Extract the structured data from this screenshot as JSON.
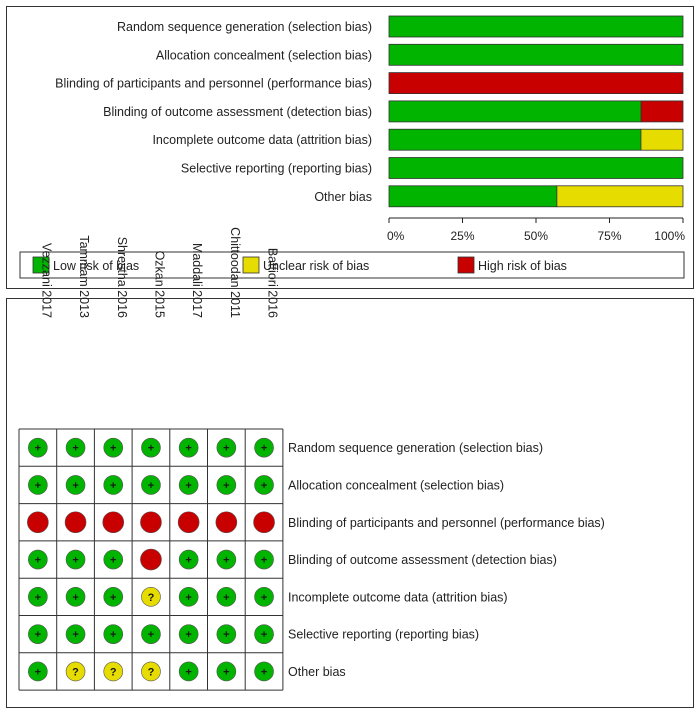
{
  "chart_data": [
    {
      "type": "bar",
      "subtype": "stacked-horizontal-percent",
      "categories": [
        "Random sequence generation (selection bias)",
        "Allocation concealment (selection bias)",
        "Blinding of participants and personnel (performance bias)",
        "Blinding of outcome assessment (detection bias)",
        "Incomplete outcome data (attrition bias)",
        "Selective reporting (reporting bias)",
        "Other bias"
      ],
      "series": [
        {
          "name": "Low risk of bias",
          "color": "#00b400",
          "values": [
            100,
            100,
            0,
            85.7,
            85.7,
            100,
            57.1
          ]
        },
        {
          "name": "Unclear risk of bias",
          "color": "#e6dc00",
          "values": [
            0,
            0,
            0,
            0,
            14.3,
            0,
            42.9
          ]
        },
        {
          "name": "High risk of bias",
          "color": "#c80000",
          "values": [
            0,
            0,
            100,
            14.3,
            0,
            0,
            0
          ]
        }
      ],
      "xlim": [
        0,
        100
      ],
      "xticks": [
        "0%",
        "25%",
        "50%",
        "75%",
        "100%"
      ],
      "legend_position": "bottom"
    },
    {
      "type": "table",
      "subtype": "risk-of-bias-summary",
      "studies": [
        "Vezzani 2017",
        "Tammam 2013",
        "Shrestha 2016",
        "Ozkan 2015",
        "Maddali 2017",
        "Chittoodan 2011",
        "Battiori 2016"
      ],
      "domains": [
        "Random sequence generation (selection bias)",
        "Allocation concealment (selection bias)",
        "Blinding of participants and personnel (performance bias)",
        "Blinding of outcome assessment (detection bias)",
        "Incomplete outcome data (attrition bias)",
        "Selective reporting (reporting bias)",
        "Other bias"
      ],
      "judgements": [
        [
          "low",
          "low",
          "low",
          "low",
          "low",
          "low",
          "low"
        ],
        [
          "low",
          "low",
          "low",
          "low",
          "low",
          "low",
          "low"
        ],
        [
          "high",
          "high",
          "high",
          "high",
          "high",
          "high",
          "high"
        ],
        [
          "low",
          "low",
          "low",
          "high",
          "low",
          "low",
          "low"
        ],
        [
          "low",
          "low",
          "low",
          "unclear",
          "low",
          "low",
          "low"
        ],
        [
          "low",
          "low",
          "low",
          "low",
          "low",
          "low",
          "low"
        ],
        [
          "low",
          "unclear",
          "unclear",
          "unclear",
          "low",
          "low",
          "low"
        ]
      ],
      "symbols": {
        "low": "+",
        "unclear": "?",
        "high": ""
      },
      "colors": {
        "low": "#00b400",
        "unclear": "#e6dc00",
        "high": "#c80000"
      }
    }
  ]
}
